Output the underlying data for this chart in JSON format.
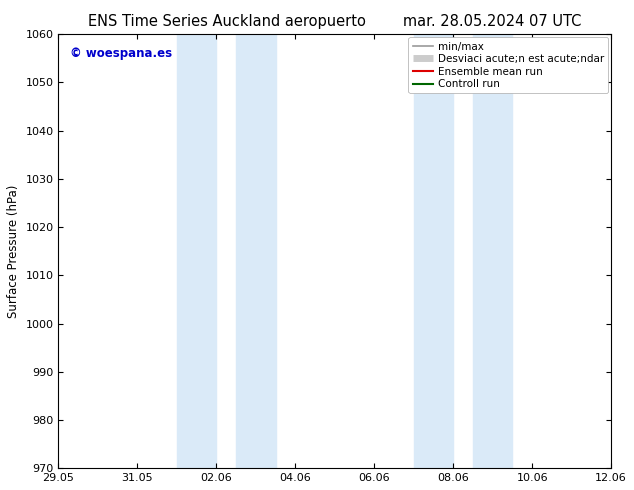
{
  "title_left": "ENS Time Series Auckland aeropuerto",
  "title_right": "mar. 28.05.2024 07 UTC",
  "ylabel": "Surface Pressure (hPa)",
  "ylim": [
    970,
    1060
  ],
  "yticks": [
    970,
    980,
    990,
    1000,
    1010,
    1020,
    1030,
    1040,
    1050,
    1060
  ],
  "xtick_labels": [
    "29.05",
    "31.05",
    "02.06",
    "04.06",
    "06.06",
    "08.06",
    "10.06",
    "12.06"
  ],
  "xtick_positions": [
    0,
    2,
    4,
    6,
    8,
    10,
    12,
    14
  ],
  "shaded_regions": [
    {
      "x_start": 3.0,
      "x_end": 4.0
    },
    {
      "x_start": 4.5,
      "x_end": 5.5
    },
    {
      "x_start": 9.0,
      "x_end": 10.0
    },
    {
      "x_start": 10.5,
      "x_end": 11.5
    }
  ],
  "shaded_color": "#daeaf8",
  "background_color": "#ffffff",
  "watermark_text": "© woespana.es",
  "watermark_color": "#0000cc",
  "legend_labels": [
    "min/max",
    "Desviaci acute;n est acute;ndar",
    "Ensemble mean run",
    "Controll run"
  ],
  "legend_colors": [
    "#999999",
    "#cccccc",
    "#dd0000",
    "#006600"
  ],
  "legend_lws": [
    1.2,
    5,
    1.5,
    1.5
  ],
  "x_start": 0,
  "x_end": 14,
  "title_fontsize": 10.5,
  "tick_fontsize": 8,
  "ylabel_fontsize": 8.5,
  "legend_fontsize": 7.5
}
